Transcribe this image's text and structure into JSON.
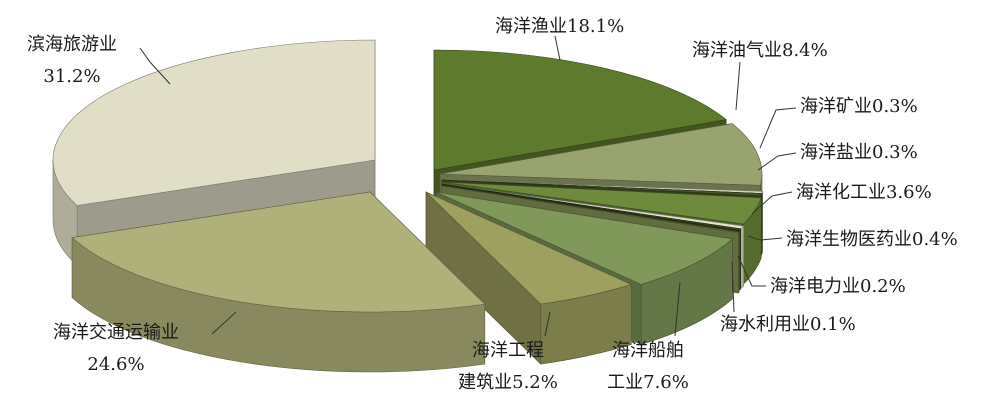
{
  "chart_data": {
    "type": "pie",
    "style": "3d-exploded",
    "title": "",
    "unit": "%",
    "slices": [
      {
        "label": "海洋渔业",
        "value": 18.1,
        "display": "海洋渔业18.1%",
        "color": "#5e7a2c"
      },
      {
        "label": "海洋油气业",
        "value": 8.4,
        "display": "海洋油气业8.4%",
        "color": "#98a370"
      },
      {
        "label": "海洋矿业",
        "value": 0.3,
        "display": "海洋矿业0.3%",
        "color": "#d8d8c0"
      },
      {
        "label": "海洋盐业",
        "value": 0.3,
        "display": "海洋盐业0.3%",
        "color": "#4a5a2a"
      },
      {
        "label": "海洋化工业",
        "value": 3.6,
        "display": "海洋化工业3.6%",
        "color": "#6e8a3c"
      },
      {
        "label": "海洋生物医药业",
        "value": 0.4,
        "display": "海洋生物医药业0.4%",
        "color": "#e4e2cc"
      },
      {
        "label": "海洋电力业",
        "value": 0.2,
        "display": "海洋电力业0.2%",
        "color": "#3c4a22"
      },
      {
        "label": "海水利用业",
        "value": 0.1,
        "display": "海水利用业0.1%",
        "color": "#8a9a5a"
      },
      {
        "label": "海洋船舶工业",
        "value": 7.6,
        "display_lines": [
          "海洋船舶",
          "工业7.6%"
        ],
        "color": "#80985a"
      },
      {
        "label": "海洋工程建筑业",
        "value": 5.2,
        "display_lines": [
          "海洋工程",
          "建筑业5.2%"
        ],
        "color": "#9ea060"
      },
      {
        "label": "海洋交通运输业",
        "value": 24.6,
        "display_lines": [
          "海洋交通运输业",
          "24.6%"
        ],
        "color": "#b0b07a"
      },
      {
        "label": "滨海旅游业",
        "value": 31.2,
        "display_lines": [
          "滨海旅游业",
          "31.2%"
        ],
        "color": "#e0dec6"
      }
    ]
  }
}
